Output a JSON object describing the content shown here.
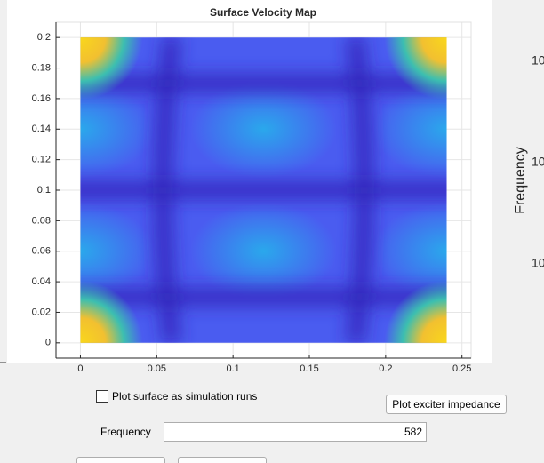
{
  "chart_data": {
    "type": "surface",
    "title": "Surface Velocity Map",
    "x_extent": [
      0,
      0.24
    ],
    "y_extent": [
      0,
      0.2
    ],
    "xlim": [
      -0.016,
      0.256
    ],
    "ylim": [
      -0.01,
      0.21
    ],
    "xticks": [
      0,
      0.05,
      0.1,
      0.15,
      0.2,
      0.25
    ],
    "yticks": [
      0,
      0.02,
      0.04,
      0.06,
      0.08,
      0.1,
      0.12,
      0.14,
      0.16,
      0.18,
      0.2
    ],
    "grid": true
  },
  "controls": {
    "checkbox_label": "Plot surface as simulation runs",
    "button_label": "Plot exciter impedance",
    "frequency_label": "Frequency",
    "frequency_value": 582
  },
  "side_panel": {
    "ylabel": "Frequency",
    "tick_labels": [
      "10",
      "10",
      "10"
    ]
  }
}
